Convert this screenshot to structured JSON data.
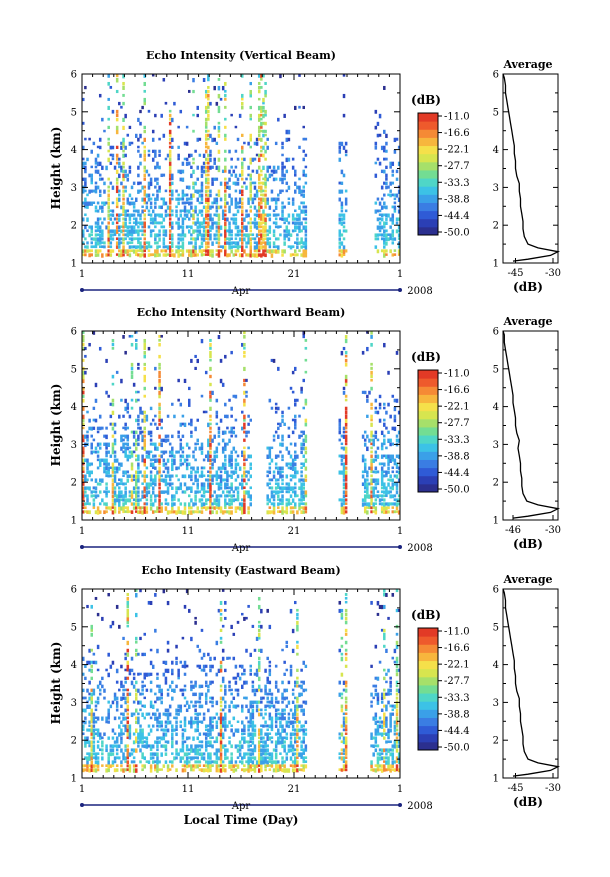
{
  "figure": {
    "xlabel": "Local Time (Day)",
    "month_label": "Apr",
    "year_label": "2008"
  },
  "chart_data": [
    {
      "type": "heatmap",
      "title": "Echo Intensity (Vertical Beam)",
      "ylabel": "Height (km)",
      "xlabel": "Local Time (Day)",
      "x_tick_labels": [
        "1",
        "11",
        "21",
        "1"
      ],
      "x_ticks_day": [
        1,
        11,
        21,
        31
      ],
      "xlim_day": [
        1,
        31
      ],
      "y_ticks": [
        "1",
        "2",
        "3",
        "4",
        "5",
        "6"
      ],
      "ylim": [
        1,
        6
      ],
      "colorbar": {
        "unit": "(dB)",
        "labels": [
          "-11.0",
          "-16.6",
          "-22.1",
          "-27.7",
          "-33.3",
          "-38.8",
          "-44.4",
          "-50.0"
        ]
      },
      "data_gaps_day": [
        [
          22.3,
          25.2
        ],
        [
          26.1,
          28.7
        ]
      ],
      "profile": {
        "title": "Average",
        "xlabel": "(dB)",
        "x_tick_labels": [
          "-45",
          "-30"
        ],
        "xlim": [
          -50,
          -28
        ],
        "height": [
          1.05,
          1.1,
          1.2,
          1.3,
          1.4,
          1.5,
          1.7,
          1.9,
          2.1,
          2.3,
          2.5,
          2.7,
          2.9,
          3.1,
          3.3,
          3.5,
          3.7,
          3.9,
          4.1,
          4.3,
          4.5,
          4.7,
          4.9,
          5.1,
          5.3,
          5.5,
          5.7,
          5.9,
          6.0
        ],
        "db": [
          -46,
          -40,
          -31,
          -28,
          -36,
          -40,
          -41.5,
          -42,
          -42,
          -42.5,
          -43,
          -43,
          -43.5,
          -43.5,
          -44.5,
          -45,
          -45,
          -45.5,
          -45.5,
          -46,
          -46.5,
          -47,
          -47.5,
          -48,
          -48.5,
          -49,
          -49,
          -49.5,
          -50
        ]
      }
    },
    {
      "type": "heatmap",
      "title": "Echo Intensity (Northward Beam)",
      "ylabel": "Height (km)",
      "xlabel": "Local Time (Day)",
      "x_tick_labels": [
        "1",
        "11",
        "21",
        "1"
      ],
      "x_ticks_day": [
        1,
        11,
        21,
        31
      ],
      "xlim_day": [
        1,
        31
      ],
      "y_ticks": [
        "1",
        "2",
        "3",
        "4",
        "5",
        "6"
      ],
      "ylim": [
        1,
        6
      ],
      "colorbar": {
        "unit": "(dB)",
        "labels": [
          "-11.0",
          "-16.6",
          "-22.1",
          "-27.7",
          "-33.3",
          "-38.8",
          "-44.4",
          "-50.0"
        ]
      },
      "data_gaps_day": [
        [
          17.0,
          18.4
        ],
        [
          22.3,
          25.2
        ],
        [
          26.1,
          27.4
        ]
      ],
      "profile": {
        "title": "Average",
        "xlabel": "(dB)",
        "x_tick_labels": [
          "-46",
          "-30"
        ],
        "xlim": [
          -50,
          -28
        ],
        "height": [
          1.05,
          1.1,
          1.2,
          1.3,
          1.4,
          1.5,
          1.7,
          1.9,
          2.1,
          2.3,
          2.5,
          2.7,
          2.9,
          3.1,
          3.3,
          3.5,
          3.7,
          3.9,
          4.1,
          4.3,
          4.5,
          4.7,
          4.9,
          5.1,
          5.3,
          5.5,
          5.7,
          5.9,
          6.0
        ],
        "db": [
          -46,
          -40,
          -31,
          -28,
          -36,
          -40.5,
          -42,
          -42.5,
          -42.5,
          -43,
          -43,
          -43.5,
          -44,
          -43.5,
          -44.5,
          -45,
          -45,
          -45.5,
          -46,
          -46,
          -46.5,
          -47,
          -47.5,
          -48,
          -48.5,
          -49,
          -49.5,
          -49.5,
          -50
        ]
      }
    },
    {
      "type": "heatmap",
      "title": "Echo Intensity (Eastward Beam)",
      "ylabel": "Height (km)",
      "xlabel": "Local Time (Day)",
      "x_tick_labels": [
        "1",
        "11",
        "21",
        "1"
      ],
      "x_ticks_day": [
        1,
        11,
        21,
        31
      ],
      "xlim_day": [
        1,
        31
      ],
      "y_ticks": [
        "1",
        "2",
        "3",
        "4",
        "5",
        "6"
      ],
      "ylim": [
        1,
        6
      ],
      "colorbar": {
        "unit": "(dB)",
        "labels": [
          "-11.0",
          "-16.6",
          "-22.1",
          "-27.7",
          "-33.3",
          "-38.8",
          "-44.4",
          "-50.0"
        ]
      },
      "data_gaps_day": [
        [
          22.3,
          25.2
        ],
        [
          26.1,
          28.1
        ]
      ],
      "profile": {
        "title": "Average",
        "xlabel": "(dB)",
        "x_tick_labels": [
          "-45",
          "-30"
        ],
        "xlim": [
          -50,
          -28
        ],
        "height": [
          1.05,
          1.1,
          1.2,
          1.3,
          1.4,
          1.5,
          1.7,
          1.9,
          2.1,
          2.3,
          2.5,
          2.7,
          2.9,
          3.1,
          3.3,
          3.5,
          3.7,
          3.9,
          4.1,
          4.3,
          4.5,
          4.7,
          4.9,
          5.1,
          5.3,
          5.5,
          5.7,
          5.9,
          6.0
        ],
        "db": [
          -46,
          -40,
          -31,
          -28,
          -36,
          -40,
          -41.5,
          -42,
          -42,
          -42.5,
          -43,
          -43,
          -43.5,
          -43.5,
          -44.5,
          -45,
          -45,
          -45.5,
          -45.5,
          -46,
          -46.5,
          -47,
          -47.5,
          -48,
          -48.5,
          -49,
          -49,
          -49.5,
          -50
        ]
      }
    }
  ],
  "colors": {
    "colormap": [
      "#2b2f8f",
      "#2b3fb5",
      "#2f5bd6",
      "#3a7de3",
      "#3aa0e8",
      "#3cc2e6",
      "#4fd6c7",
      "#73dd93",
      "#a6e06a",
      "#d7e54f",
      "#f5e04a",
      "#f7b63d",
      "#f58a35",
      "#ee5a2c",
      "#e23a26"
    ],
    "axis": "#000000",
    "time_bar": "#1a237e"
  }
}
